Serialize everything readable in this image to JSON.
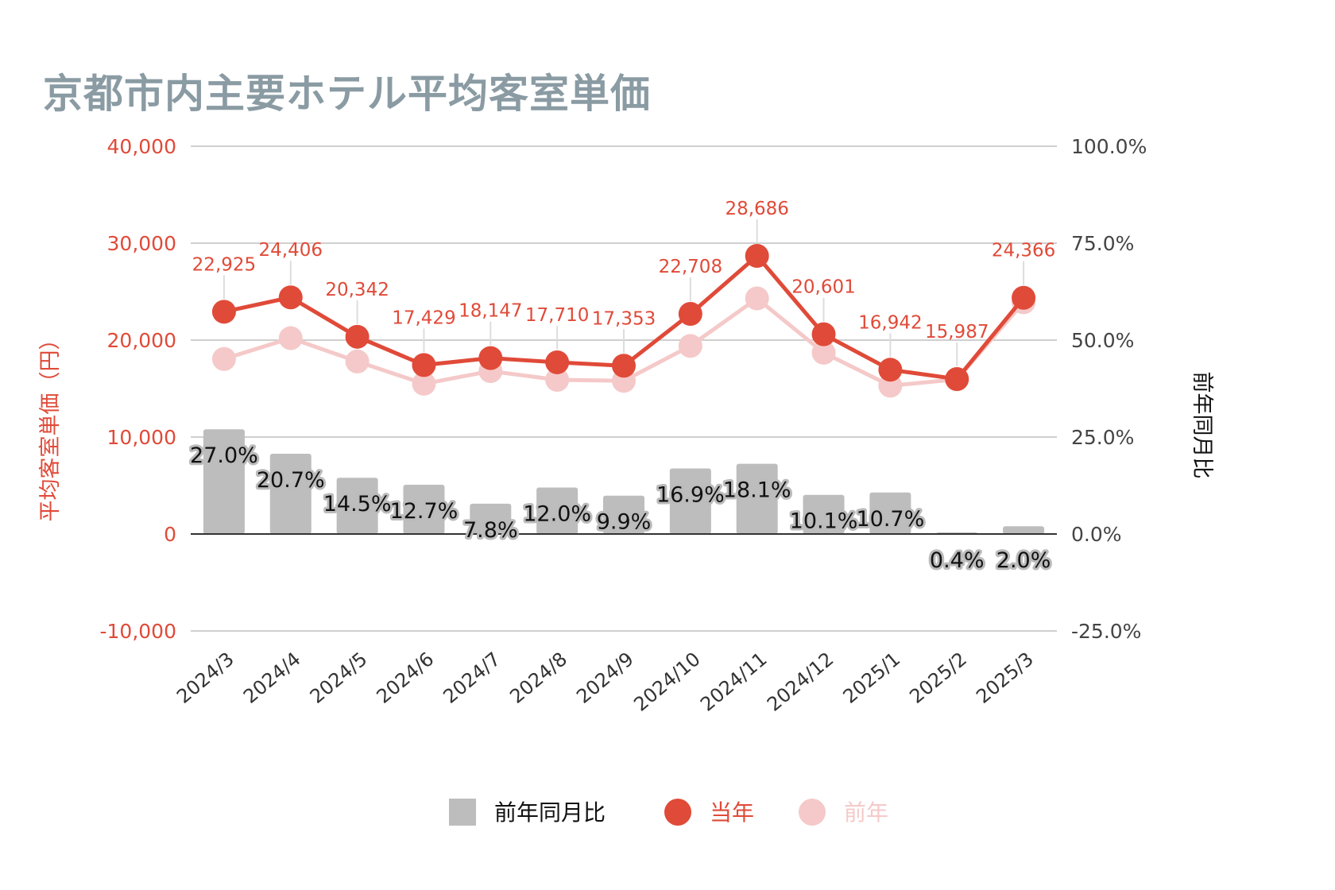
{
  "title": "京都市内主要ホテル平均客室単価",
  "chart_data": {
    "type": "bar-line-combo",
    "categories": [
      "2024/3",
      "2024/4",
      "2024/5",
      "2024/6",
      "2024/7",
      "2024/8",
      "2024/9",
      "2024/10",
      "2024/11",
      "2024/12",
      "2025/1",
      "2025/2",
      "2025/3"
    ],
    "series": [
      {
        "name": "前年同月比",
        "type": "bar",
        "axis": "right",
        "color": "#bdbdbd",
        "values": [
          27.0,
          20.7,
          14.5,
          12.7,
          7.8,
          12.0,
          9.9,
          16.9,
          18.1,
          10.1,
          10.7,
          0.4,
          2.0
        ],
        "labels": [
          "27.0%",
          "20.7%",
          "14.5%",
          "12.7%",
          "7.8%",
          "12.0%",
          "9.9%",
          "16.9%",
          "18.1%",
          "10.1%",
          "10.7%",
          "0.4%",
          "2.0%"
        ]
      },
      {
        "name": "当年",
        "type": "line",
        "axis": "left",
        "color": "#e04a38",
        "values": [
          22925,
          24406,
          20342,
          17429,
          18147,
          17710,
          17353,
          22708,
          28686,
          20601,
          16942,
          15987,
          24366
        ],
        "labels": [
          "22,925",
          "24,406",
          "20,342",
          "17,429",
          "18,147",
          "17,710",
          "17,353",
          "22,708",
          "28,686",
          "20,601",
          "16,942",
          "15,987",
          "24,366"
        ]
      },
      {
        "name": "前年",
        "type": "line",
        "axis": "left",
        "color": "#f5c9c9",
        "values": [
          18050,
          20200,
          17800,
          15500,
          16800,
          15900,
          15800,
          19400,
          24300,
          18700,
          15300,
          15950,
          23900
        ]
      }
    ],
    "left_axis": {
      "label": "平均客室単価（円）",
      "ylim": [
        -10000,
        40000
      ],
      "ticks": [
        "-10,000",
        "0",
        "10,000",
        "20,000",
        "30,000",
        "40,000"
      ]
    },
    "right_axis": {
      "label": "前年同月比",
      "ylim": [
        -25,
        100
      ],
      "ticks": [
        "-25.0%",
        "0.0%",
        "25.0%",
        "50.0%",
        "75.0%",
        "100.0%"
      ]
    },
    "grid": true,
    "legend": {
      "position": "bottom",
      "items": [
        "前年同月比",
        "当年",
        "前年"
      ]
    }
  }
}
